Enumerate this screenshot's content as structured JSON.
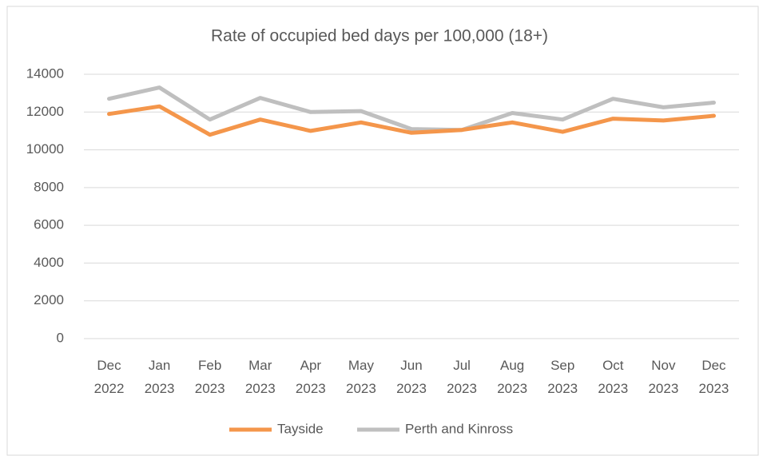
{
  "chart_data": {
    "type": "line",
    "title": "Rate of occupied bed days per 100,000 (18+)",
    "categories": [
      "Dec 2022",
      "Jan 2023",
      "Feb 2023",
      "Mar 2023",
      "Apr 2023",
      "May 2023",
      "Jun 2023",
      "Jul 2023",
      "Aug 2023",
      "Sep 2023",
      "Oct 2023",
      "Nov 2023",
      "Dec 2023"
    ],
    "series": [
      {
        "name": "Tayside",
        "color": "#f4964b",
        "values": [
          11900,
          12300,
          10800,
          11600,
          11000,
          11450,
          10900,
          11050,
          11450,
          10950,
          11650,
          11550,
          11800
        ]
      },
      {
        "name": "Perth and Kinross",
        "color": "#bfbfbf",
        "values": [
          12700,
          13300,
          11600,
          12750,
          12000,
          12050,
          11100,
          11050,
          11950,
          11600,
          12700,
          12250,
          12500
        ]
      }
    ],
    "ylim": [
      0,
      14000
    ],
    "yticks": [
      0,
      2000,
      4000,
      6000,
      8000,
      10000,
      12000,
      14000
    ],
    "grid": true,
    "legend": "bottom"
  }
}
